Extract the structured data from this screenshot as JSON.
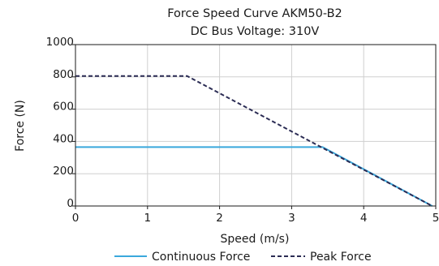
{
  "chart_data": {
    "type": "line",
    "title": "Force Speed Curve AKM50-B2",
    "subtitle": "DC Bus Voltage: 310V",
    "xlabel": "Speed (m/s)",
    "ylabel": "Force (N)",
    "xlim": [
      0,
      5
    ],
    "ylim": [
      0,
      1000
    ],
    "xticks": [
      "0",
      "1",
      "2",
      "3",
      "4",
      "5"
    ],
    "yticks": [
      "0",
      "200",
      "400",
      "600",
      "800",
      "1000"
    ],
    "grid": true,
    "legend_position": "bottom",
    "series": [
      {
        "name": "Continuous Force",
        "color": "#3aa8dc",
        "dash": "solid",
        "x": [
          0,
          3.43,
          4.95
        ],
        "y": [
          365,
          365,
          0
        ]
      },
      {
        "name": "Peak Force",
        "color": "#2b2c54",
        "dash": "dashed",
        "x": [
          0,
          1.55,
          4.95
        ],
        "y": [
          805,
          805,
          0
        ]
      }
    ]
  }
}
